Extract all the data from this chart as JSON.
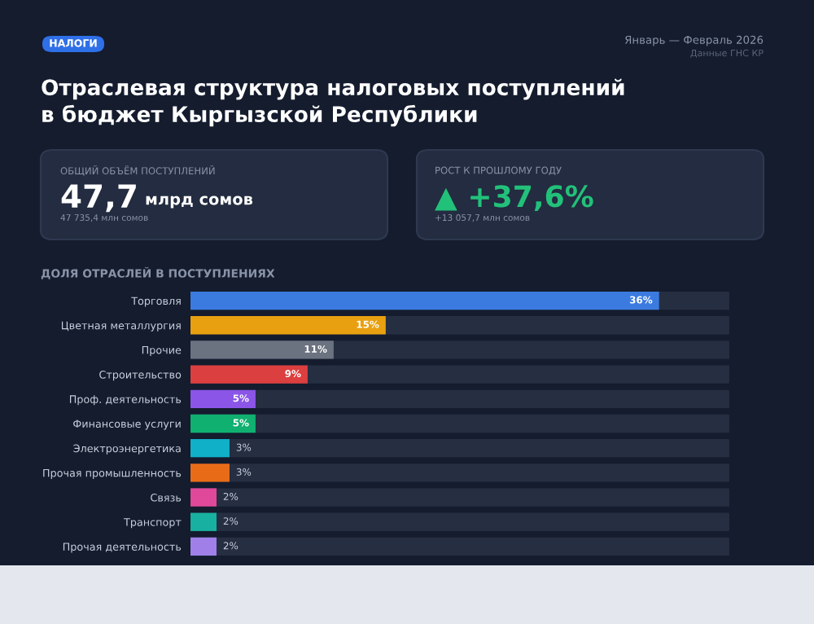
{
  "chart_data": {
    "type": "bar",
    "orientation": "horizontal",
    "title": "Отраслевая структура налоговых поступлений\nв бюджет Кыргызской Республики",
    "subtitle": "ДОЛЯ ОТРАСЛЕЙ В ПОСТУПЛЕНИЯХ",
    "annotations": [
      "НАЛОГИ",
      "Январь — Февраль 2026",
      "Данные ГНС КР",
      "ОБЩИЙ ОБЪЁМ ПОСТУПЛЕНИЙ",
      "47,7",
      "млрд сомов",
      "47 735,4 млн сомов",
      "РОСТ К ПРОШЛОМУ ГОДУ",
      "▲ +37,6%",
      "+13 057,7 млн сомов"
    ],
    "categories": [
      "Торговля",
      "Цветная металлургия",
      "Прочие",
      "Строительство",
      "Проф. деятельность",
      "Финансовые услуги",
      "Электроэнергетика",
      "Прочая промышленность",
      "Связь",
      "Транспорт",
      "Прочая деятельность"
    ],
    "values": [
      36,
      15,
      11,
      9,
      5,
      5,
      3,
      3,
      2,
      2,
      2
    ],
    "colors": [
      "#3b7be0",
      "#e8a010",
      "#6b7280",
      "#dc3f3f",
      "#8b55e8",
      "#10b070",
      "#10b0c8",
      "#e86c18",
      "#e0489a",
      "#18b0a0",
      "#a080e8"
    ],
    "value_labels": [
      "36%",
      "15%",
      "11%",
      "9%",
      "5%",
      "5%",
      "3%",
      "3%",
      "2%",
      "2%",
      "2%"
    ],
    "legend": false
  }
}
